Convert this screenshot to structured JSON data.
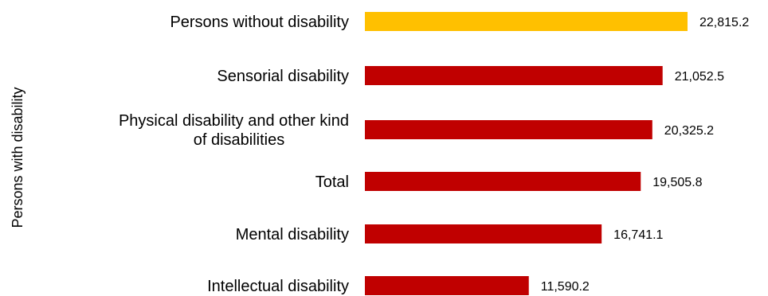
{
  "chart_data": {
    "type": "bar",
    "orientation": "horizontal",
    "ylabel": "Persons with disability",
    "categories": [
      "Persons without disability",
      "Sensorial disability",
      "Physical disability and other kind of disabilities",
      "Total",
      "Mental disability",
      "Intellectual disability"
    ],
    "values": [
      22815.2,
      21052.5,
      20325.2,
      19505.8,
      16741.1,
      11590.2
    ],
    "value_labels": [
      "22,815.2",
      "21,052.5",
      "20,325.2",
      "19,505.8",
      "16,741.1",
      "11,590.2"
    ],
    "colors": [
      "#FFC000",
      "#C00000",
      "#C00000",
      "#C00000",
      "#C00000",
      "#C00000"
    ],
    "xlim": [
      0,
      24000
    ],
    "grid": false,
    "legend": "none"
  }
}
